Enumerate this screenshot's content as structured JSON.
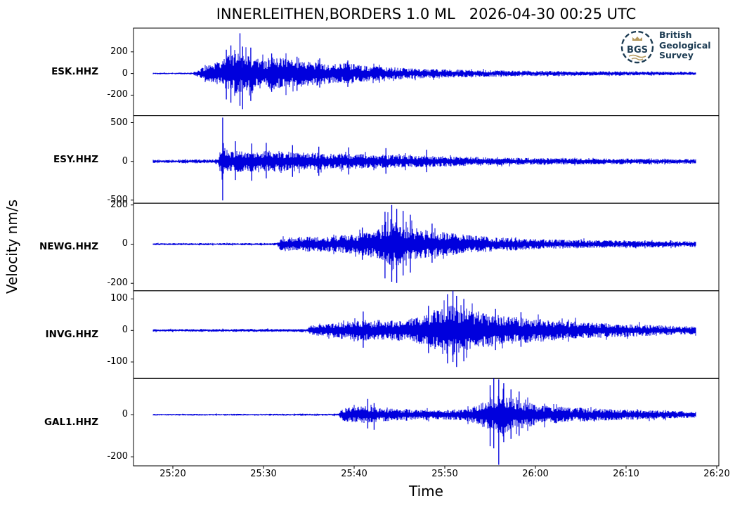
{
  "title": "INNERLEITHEN,BORDERS 1.0 ML   2026-04-30 00:25 UTC",
  "ylabel": "Velocity nm/s",
  "xlabel": "Time",
  "logo": {
    "abbr": "BGS",
    "lines": [
      "British",
      "Geological",
      "Survey"
    ],
    "navy": "#1d3c53",
    "gold": "#b5995b"
  },
  "colors": {
    "trace": "#0000dd",
    "axis": "#000000",
    "text": "#000000",
    "background": "#ffffff"
  },
  "chart_data": {
    "type": "line",
    "description": "Five-channel seismogram record section, vertical velocity traces stacked in adjacent panels sharing one time axis",
    "time_axis": {
      "tick_labels_format": "MM:SS after 00 UTC hour",
      "x_range_s": [
        15.66,
        80.23
      ],
      "data_span_s": [
        17.8,
        77.7
      ],
      "x_ticks": [
        {
          "s": 20,
          "label": "25:20"
        },
        {
          "s": 30,
          "label": "25:30"
        },
        {
          "s": 40,
          "label": "25:40"
        },
        {
          "s": 50,
          "label": "25:50"
        },
        {
          "s": 60,
          "label": "26:00"
        },
        {
          "s": 70,
          "label": "26:10"
        },
        {
          "s": 80,
          "label": "26:20"
        }
      ]
    },
    "stations": [
      {
        "name": "ESK.HHZ",
        "ylim": [
          -390,
          420
        ],
        "yticks": [
          200,
          0,
          -200
        ],
        "envelope": [
          [
            17.8,
            7
          ],
          [
            22.2,
            8
          ],
          [
            22.8,
            40
          ],
          [
            23.5,
            70
          ],
          [
            24.5,
            100
          ],
          [
            25.5,
            130
          ],
          [
            26.3,
            180
          ],
          [
            27.0,
            200
          ],
          [
            27.6,
            170
          ],
          [
            28.3,
            185
          ],
          [
            29,
            150
          ],
          [
            30,
            130
          ],
          [
            30.8,
            155
          ],
          [
            31.5,
            140
          ],
          [
            32.3,
            150
          ],
          [
            33,
            130
          ],
          [
            34,
            125
          ],
          [
            35,
            110
          ],
          [
            36.5,
            100
          ],
          [
            38,
            90
          ],
          [
            39.5,
            95
          ],
          [
            41,
            75
          ],
          [
            43,
            65
          ],
          [
            45,
            55
          ],
          [
            47,
            48
          ],
          [
            49,
            42
          ],
          [
            51,
            38
          ],
          [
            54,
            32
          ],
          [
            57,
            28
          ],
          [
            60,
            25
          ],
          [
            64,
            22
          ],
          [
            68,
            20
          ],
          [
            72,
            18
          ],
          [
            77.7,
            16
          ]
        ],
        "spikes": [
          [
            27.4,
            372,
            -300
          ],
          [
            27.7,
            250,
            -330
          ],
          [
            26.4,
            260,
            -270
          ],
          [
            25.9,
            220,
            -240
          ],
          [
            28.6,
            240,
            -255
          ],
          [
            30.9,
            185,
            -170
          ],
          [
            33.7,
            155,
            -160
          ],
          [
            36.2,
            140,
            -130
          ],
          [
            39.3,
            120,
            -125
          ]
        ]
      },
      {
        "name": "ESY.HHZ",
        "ylim": [
          -540,
          590
        ],
        "yticks": [
          500,
          0,
          -500
        ],
        "envelope": [
          [
            17.8,
            22
          ],
          [
            24.6,
            25
          ],
          [
            25.1,
            60
          ],
          [
            25.45,
            300
          ],
          [
            25.7,
            180
          ],
          [
            26.2,
            120
          ],
          [
            27,
            140
          ],
          [
            28,
            130
          ],
          [
            29.5,
            145
          ],
          [
            31,
            135
          ],
          [
            33,
            125
          ],
          [
            35,
            115
          ],
          [
            37,
            105
          ],
          [
            39,
            100
          ],
          [
            41,
            95
          ],
          [
            43,
            90
          ],
          [
            45,
            85
          ],
          [
            47,
            78
          ],
          [
            49,
            70
          ],
          [
            51,
            62
          ],
          [
            53,
            58
          ],
          [
            55,
            52
          ],
          [
            57,
            48
          ],
          [
            59,
            45
          ],
          [
            61,
            42
          ],
          [
            64,
            40
          ],
          [
            67,
            38
          ],
          [
            70,
            36
          ],
          [
            73,
            34
          ],
          [
            77.7,
            32
          ]
        ],
        "spikes": [
          [
            25.5,
            565,
            -505
          ],
          [
            26.9,
            260,
            -240
          ],
          [
            28.7,
            230,
            -250
          ],
          [
            30.3,
            240,
            -220
          ],
          [
            33.2,
            210,
            -200
          ],
          [
            36.1,
            190,
            -185
          ],
          [
            39.4,
            180,
            -170
          ],
          [
            43.5,
            170,
            -160
          ],
          [
            48,
            150,
            -140
          ]
        ]
      },
      {
        "name": "NEWG.HHZ",
        "ylim": [
          -238,
          209
        ],
        "yticks": [
          200,
          0,
          -200
        ],
        "envelope": [
          [
            17.8,
            5
          ],
          [
            31.5,
            6
          ],
          [
            31.9,
            38
          ],
          [
            33,
            35
          ],
          [
            34.5,
            40
          ],
          [
            36,
            38
          ],
          [
            37.5,
            42
          ],
          [
            39,
            48
          ],
          [
            40.5,
            55
          ],
          [
            41.8,
            60
          ],
          [
            42.8,
            80
          ],
          [
            43.6,
            120
          ],
          [
            44.2,
            150
          ],
          [
            44.8,
            120
          ],
          [
            45.5,
            100
          ],
          [
            46.5,
            85
          ],
          [
            47.5,
            75
          ],
          [
            49,
            65
          ],
          [
            50.5,
            58
          ],
          [
            52,
            50
          ],
          [
            53.5,
            44
          ],
          [
            55,
            38
          ],
          [
            57,
            33
          ],
          [
            59,
            28
          ],
          [
            61,
            25
          ],
          [
            63,
            23
          ],
          [
            66,
            21
          ],
          [
            69,
            19
          ],
          [
            72,
            17
          ],
          [
            77.7,
            14
          ]
        ],
        "spikes": [
          [
            44.15,
            200,
            -192
          ],
          [
            44.7,
            180,
            -198
          ],
          [
            43.4,
            165,
            -175
          ],
          [
            45.4,
            170,
            -160
          ],
          [
            46.2,
            150,
            -145
          ],
          [
            40.9,
            85,
            -80
          ],
          [
            48.6,
            105,
            -95
          ]
        ]
      },
      {
        "name": "INVG.HHZ",
        "ylim": [
          -152,
          126
        ],
        "yticks": [
          100,
          0,
          -100
        ],
        "envelope": [
          [
            17.8,
            4
          ],
          [
            34.9,
            5
          ],
          [
            35.3,
            16
          ],
          [
            36.5,
            20
          ],
          [
            38,
            24
          ],
          [
            39.3,
            30
          ],
          [
            40.3,
            36
          ],
          [
            41.3,
            33
          ],
          [
            42.5,
            28
          ],
          [
            44,
            32
          ],
          [
            45.5,
            35
          ],
          [
            47,
            42
          ],
          [
            48,
            50
          ],
          [
            49,
            62
          ],
          [
            50,
            72
          ],
          [
            50.8,
            80
          ],
          [
            51.5,
            75
          ],
          [
            52.5,
            65
          ],
          [
            53.5,
            58
          ],
          [
            55,
            52
          ],
          [
            56.5,
            47
          ],
          [
            58,
            42
          ],
          [
            60,
            38
          ],
          [
            62,
            33
          ],
          [
            64,
            30
          ],
          [
            66,
            25
          ],
          [
            68.5,
            22
          ],
          [
            71,
            20
          ],
          [
            74,
            16
          ],
          [
            77.7,
            13
          ]
        ],
        "spikes": [
          [
            50.9,
            126,
            -100
          ],
          [
            51.3,
            110,
            -116
          ],
          [
            50.3,
            115,
            -105
          ],
          [
            52.1,
            100,
            -98
          ],
          [
            41.0,
            60,
            -55
          ],
          [
            48.2,
            78,
            -72
          ],
          [
            55.6,
            68,
            -62
          ],
          [
            58.4,
            58,
            -52
          ]
        ]
      },
      {
        "name": "GAL1.HHZ",
        "ylim": [
          -243,
          173
        ],
        "yticks": [
          0,
          -200
        ],
        "envelope": [
          [
            17.8,
            4
          ],
          [
            38.3,
            5
          ],
          [
            38.7,
            30
          ],
          [
            40,
            36
          ],
          [
            41.3,
            42
          ],
          [
            42.5,
            36
          ],
          [
            44,
            30
          ],
          [
            45.5,
            26
          ],
          [
            47,
            23
          ],
          [
            49,
            22
          ],
          [
            51,
            26
          ],
          [
            52.5,
            32
          ],
          [
            53.5,
            45
          ],
          [
            54.5,
            65
          ],
          [
            55.3,
            85
          ],
          [
            56,
            95
          ],
          [
            56.8,
            85
          ],
          [
            57.8,
            75
          ],
          [
            58.8,
            62
          ],
          [
            60,
            52
          ],
          [
            61.5,
            44
          ],
          [
            63,
            38
          ],
          [
            65,
            33
          ],
          [
            67,
            29
          ],
          [
            69,
            26
          ],
          [
            71,
            23
          ],
          [
            73,
            21
          ],
          [
            75,
            19
          ],
          [
            77.7,
            14
          ]
        ],
        "spikes": [
          [
            55.4,
            173,
            -160
          ],
          [
            55.95,
            168,
            -238
          ],
          [
            55.0,
            140,
            -150
          ],
          [
            56.5,
            150,
            -130
          ],
          [
            57.3,
            120,
            -115
          ],
          [
            41.5,
            75,
            -65
          ],
          [
            42.2,
            55,
            -72
          ],
          [
            58.2,
            110,
            -100
          ]
        ]
      }
    ]
  }
}
